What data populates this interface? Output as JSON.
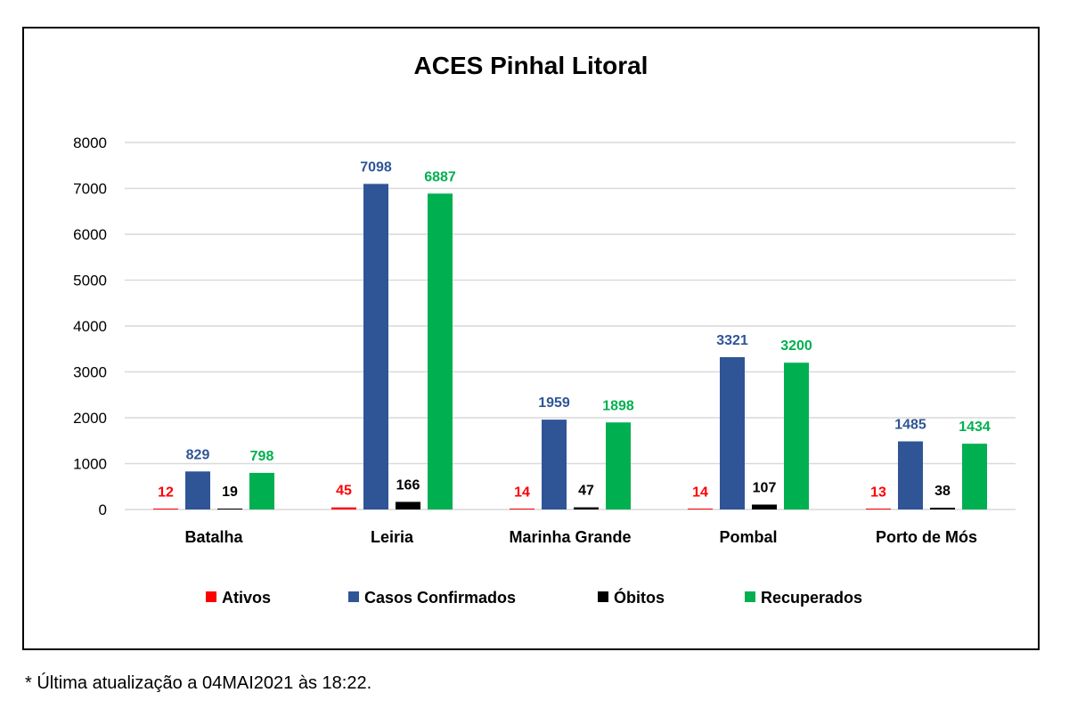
{
  "chart_data": {
    "type": "bar",
    "title": "ACES Pinhal Litoral",
    "categories": [
      "Batalha",
      "Leiria",
      "Marinha Grande",
      "Pombal",
      "Porto de Mós"
    ],
    "series": [
      {
        "name": "Ativos",
        "color": "#ff0000",
        "label_color": "#ff0000",
        "values": [
          12,
          45,
          14,
          14,
          13
        ]
      },
      {
        "name": "Casos Confirmados",
        "color": "#2f5597",
        "label_color": "#2f5597",
        "values": [
          829,
          7098,
          1959,
          3321,
          1485
        ]
      },
      {
        "name": "Óbitos",
        "color": "#000000",
        "label_color": "#000000",
        "values": [
          19,
          166,
          47,
          107,
          38
        ]
      },
      {
        "name": "Recuperados",
        "color": "#00b050",
        "label_color": "#00b050",
        "values": [
          798,
          6887,
          1898,
          3200,
          1434
        ]
      }
    ],
    "ylim": [
      0,
      8000
    ],
    "yticks": [
      0,
      1000,
      2000,
      3000,
      4000,
      5000,
      6000,
      7000,
      8000
    ],
    "xlabel": "",
    "ylabel": "",
    "grid": true,
    "legend_position": "bottom"
  },
  "footnote": "* Última atualização a 04MAI2021 às 18:22."
}
